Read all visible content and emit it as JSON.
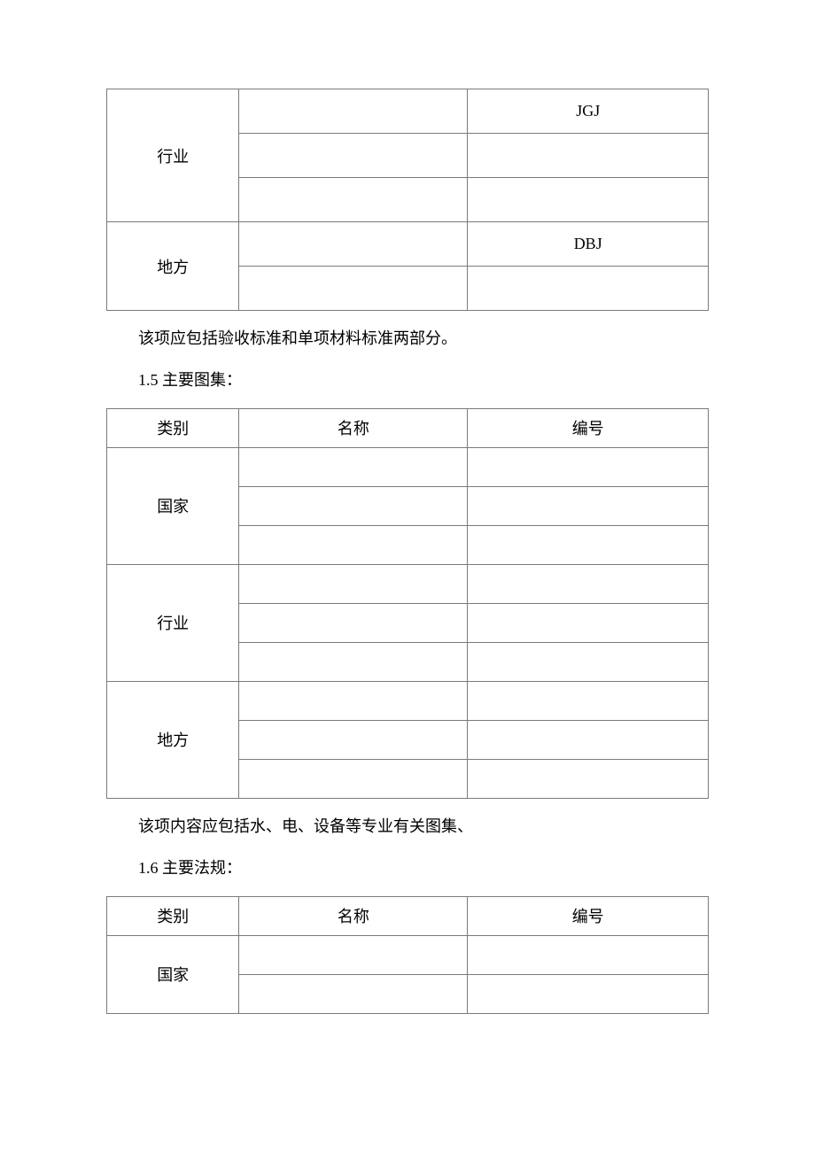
{
  "table1": {
    "rows": [
      {
        "cat": "行业",
        "rowspan": 3,
        "name": "",
        "num": "JGJ"
      },
      {
        "name": "",
        "num": ""
      },
      {
        "name": "",
        "num": ""
      },
      {
        "cat": "地方",
        "rowspan": 2,
        "name": "",
        "num": "DBJ"
      },
      {
        "name": "",
        "num": ""
      }
    ]
  },
  "para1": "该项应包括验收标准和单项材料标准两部分。",
  "section1_5": "1.5 主要图集：",
  "table2": {
    "headers": {
      "cat": "类别",
      "name": "名称",
      "num": "编号"
    },
    "groups": [
      {
        "cat": "国家",
        "rows": [
          {
            "name": "",
            "num": ""
          },
          {
            "name": "",
            "num": ""
          },
          {
            "name": "",
            "num": ""
          }
        ]
      },
      {
        "cat": "行业",
        "rows": [
          {
            "name": "",
            "num": ""
          },
          {
            "name": "",
            "num": ""
          },
          {
            "name": "",
            "num": ""
          }
        ]
      },
      {
        "cat": "地方",
        "rows": [
          {
            "name": "",
            "num": ""
          },
          {
            "name": "",
            "num": ""
          },
          {
            "name": "",
            "num": ""
          }
        ]
      }
    ]
  },
  "para2": "该项内容应包括水、电、设备等专业有关图集、",
  "section1_6": "1.6 主要法规：",
  "table3": {
    "headers": {
      "cat": "类别",
      "name": "名称",
      "num": "编号"
    },
    "groups": [
      {
        "cat": "国家",
        "rows": [
          {
            "name": "",
            "num": ""
          },
          {
            "name": "",
            "num": ""
          }
        ]
      }
    ]
  }
}
